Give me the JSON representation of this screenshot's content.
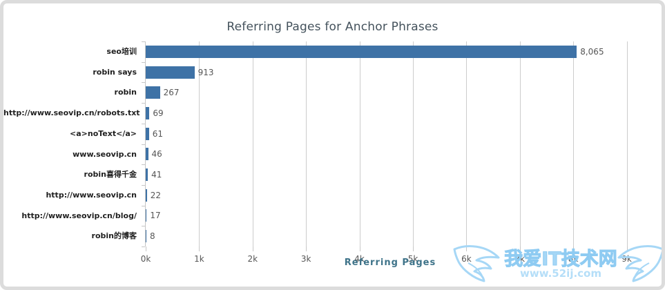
{
  "chart_data": {
    "type": "bar",
    "orientation": "horizontal",
    "title": "Referring Pages for Anchor Phrases",
    "xlabel": "Referring Pages",
    "ylabel": "",
    "categories": [
      "seo培训",
      "robin says",
      "robin",
      "http://www.seovip.cn/robots.txt",
      "<a>noText</a>",
      "www.seovip.cn",
      "robin喜得千金",
      "http://www.seovip.cn",
      "http://www.seovip.cn/blog/",
      "robin的博客"
    ],
    "values": [
      8065,
      913,
      267,
      69,
      61,
      46,
      41,
      22,
      17,
      8
    ],
    "value_labels": [
      "8,065",
      "913",
      "267",
      "69",
      "61",
      "46",
      "41",
      "22",
      "17",
      "8"
    ],
    "x_ticks": [
      "0k",
      "1k",
      "2k",
      "3k",
      "4k",
      "5k",
      "6k",
      "7k",
      "8k",
      "9k"
    ],
    "xlim": [
      0,
      9000
    ],
    "grid": "vertical-only",
    "legend": "none",
    "bar_color": "#3e72a6"
  },
  "colors": {
    "bar": "#3e72a6",
    "grid": "#cccccc",
    "axis": "#c6c6c6",
    "title_text": "#44525c",
    "axis_title_text": "#3e7389",
    "tick_text": "#555555",
    "category_text": "#1f1f1f",
    "panel_border": "#dcdcdc",
    "watermark_blue": "#a6d7f6"
  },
  "watermark": {
    "site_name": "我爱IT技术网",
    "site_url": "www.52ij.com"
  }
}
